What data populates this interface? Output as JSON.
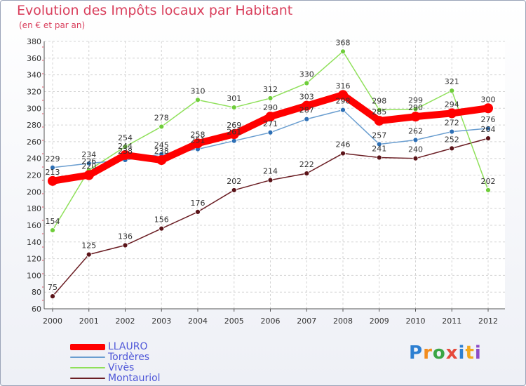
{
  "title": "Evolution des Impôts locaux par Habitant",
  "subtitle": "(en € et par an)",
  "logo": {
    "text": "Proxiti",
    "colors": [
      "#2d7fd1",
      "#f28c1e",
      "#3aa545",
      "#e64a3c",
      "#2d7fd1",
      "#f2a81e",
      "#8c4cc7"
    ]
  },
  "chart_data": {
    "type": "line",
    "title": "Evolution des Impôts locaux par Habitant",
    "subtitle": "(en € et par an)",
    "xlabel": "",
    "ylabel": "",
    "x": [
      "2000",
      "2001",
      "2002",
      "2003",
      "2004",
      "2005",
      "2006",
      "2007",
      "2008",
      "2009",
      "2010",
      "2011",
      "2012"
    ],
    "ylim": [
      60,
      380
    ],
    "yticks": [
      60,
      80,
      100,
      120,
      140,
      160,
      180,
      200,
      220,
      240,
      260,
      280,
      300,
      320,
      340,
      360,
      380
    ],
    "grid": true,
    "legend_position": "bottom-left",
    "series": [
      {
        "name": "LLAURO",
        "color": "#ff0000",
        "values": [
          213,
          220,
          244,
          238,
          258,
          269,
          290,
          303,
          316,
          285,
          290,
          294,
          300
        ]
      },
      {
        "name": "Tordères",
        "color": "#6a9ed0",
        "values": [
          229,
          234,
          238,
          245,
          251,
          261,
          271,
          287,
          298,
          257,
          262,
          272,
          276
        ]
      },
      {
        "name": "Vivès",
        "color": "#8fe05a",
        "values": [
          154,
          226,
          254,
          278,
          310,
          301,
          312,
          330,
          368,
          298,
          299,
          321,
          202
        ]
      },
      {
        "name": "Montauriol",
        "color": "#6b1e24",
        "values": [
          75,
          125,
          136,
          156,
          176,
          202,
          214,
          222,
          246,
          241,
          240,
          252,
          264
        ]
      }
    ]
  }
}
